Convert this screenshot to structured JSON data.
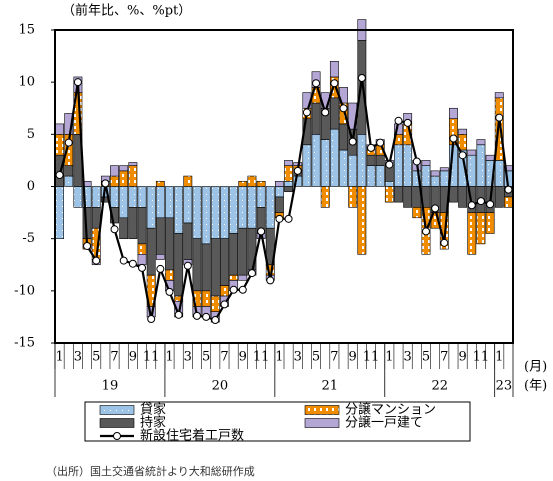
{
  "chart_data": {
    "type": "bar",
    "unit_label": "（前年比、%、%pt）",
    "month_axis_label": "(月)",
    "year_axis_label": "(年)",
    "source": "（出所）国土交通省統計より大和総研作成",
    "categories": [
      "1",
      null,
      "3",
      null,
      "5",
      null,
      "7",
      null,
      "9",
      null,
      "11",
      null,
      "1",
      null,
      "3",
      null,
      "5",
      null,
      "7",
      null,
      "9",
      null,
      "11",
      null,
      "1",
      null,
      "3",
      null,
      "5",
      null,
      "7",
      null,
      "9",
      null,
      "11",
      null,
      "1",
      null,
      "3",
      null,
      "5",
      null,
      "7",
      null,
      "9",
      null,
      "11",
      null,
      "1",
      null
    ],
    "years": [
      "19",
      "20",
      "21",
      "22",
      "23"
    ],
    "ylim": [
      -15,
      15
    ],
    "yticks": [
      -15,
      -10,
      -5,
      0,
      5,
      10,
      15
    ],
    "series": [
      {
        "name": "貸家",
        "color": "#9dc3e6",
        "values": [
          -5.0,
          1.0,
          -2.0,
          -2.0,
          -2.0,
          -1.0,
          -2.0,
          -3.0,
          -2.0,
          -2.0,
          -4.0,
          -3.0,
          -3.0,
          -4.5,
          -3.5,
          -5.0,
          -5.5,
          -5.0,
          -5.0,
          -4.5,
          -4.0,
          -4.0,
          -2.0,
          -4.0,
          -1.0,
          0.5,
          1.0,
          4.0,
          5.0,
          4.5,
          5.5,
          3.5,
          3.0,
          5.0,
          2.0,
          2.0,
          0.5,
          4.0,
          4.0,
          1.5,
          2.0,
          1.0,
          1.5,
          4.0,
          3.5,
          3.0,
          4.0,
          2.5,
          2.5,
          1.5
        ]
      },
      {
        "name": "分譲マンション",
        "color": "#f08c00",
        "values": [
          2.0,
          3.0,
          4.0,
          -1.0,
          -3.0,
          0.5,
          1.0,
          1.5,
          2.0,
          -1.0,
          -3.0,
          0.5,
          -1.0,
          -0.5,
          1.0,
          -1.5,
          -1.5,
          -1.5,
          -1.0,
          -0.5,
          0.5,
          1.0,
          0.5,
          -1.0,
          -0.5,
          1.5,
          0.5,
          1.0,
          1.5,
          -2.0,
          2.0,
          2.0,
          -2.0,
          -6.5,
          0.5,
          1.0,
          -1.5,
          1.0,
          2.0,
          -1.0,
          -4.5,
          -1.5,
          -3.5,
          2.5,
          1.5,
          -4.0,
          -3.0,
          -2.0,
          6.0,
          -1.0
        ]
      },
      {
        "name": "持家",
        "color": "#595959",
        "values": [
          3.0,
          1.0,
          5.0,
          -3.0,
          -2.0,
          -0.5,
          -1.5,
          -2.0,
          -3.0,
          -3.5,
          -4.5,
          -3.5,
          -5.0,
          -6.0,
          -3.5,
          -5.0,
          -4.5,
          -5.5,
          -4.5,
          -4.0,
          -4.5,
          -4.0,
          -2.5,
          -3.5,
          -1.5,
          -0.5,
          0.5,
          2.5,
          3.0,
          3.0,
          3.0,
          2.5,
          2.5,
          9.0,
          1.0,
          1.0,
          1.5,
          -1.5,
          -2.0,
          -2.0,
          -2.0,
          -2.5,
          -2.5,
          -1.5,
          -2.0,
          -2.5,
          -2.5,
          -2.5,
          -2.0,
          -1.0
        ]
      },
      {
        "name": "分譲一戸建て",
        "color": "#b4a7d6",
        "values": [
          1.0,
          2.0,
          1.5,
          0.5,
          -0.5,
          0.5,
          1.0,
          0.5,
          0.3,
          -1.0,
          -1.0,
          -0.5,
          -1.0,
          -1.5,
          -0.5,
          -1.0,
          -1.0,
          -1.0,
          -1.0,
          -1.0,
          -0.5,
          -0.5,
          -0.5,
          -0.5,
          0.5,
          0.5,
          0.3,
          1.5,
          1.5,
          1.5,
          1.5,
          1.5,
          2.5,
          2.0,
          0.5,
          0.5,
          0.5,
          1.0,
          1.0,
          1.0,
          0.5,
          0.5,
          0.3,
          1.0,
          0.5,
          0.5,
          0.5,
          0.5,
          0.5,
          0.5
        ]
      },
      {
        "name": "新設住宅着工戸数",
        "type": "line",
        "color": "#000000",
        "values": [
          1.1,
          4.2,
          10.0,
          -5.7,
          -7.1,
          0.3,
          -4.1,
          -7.1,
          -7.4,
          -7.8,
          -12.7,
          -7.9,
          -10.1,
          -12.3,
          -7.6,
          -12.4,
          -12.5,
          -12.8,
          -11.3,
          -9.9,
          -9.9,
          -8.3,
          -4.3,
          -9.0,
          -3.1,
          -3.1,
          1.5,
          7.1,
          9.9,
          7.1,
          9.9,
          7.5,
          4.3,
          10.4,
          3.7,
          4.2,
          2.1,
          6.3,
          6.1,
          2.4,
          -4.3,
          -2.1,
          -5.4,
          4.6,
          3.0,
          -1.8,
          -1.4,
          -1.7,
          6.6,
          -0.3
        ]
      }
    ]
  }
}
